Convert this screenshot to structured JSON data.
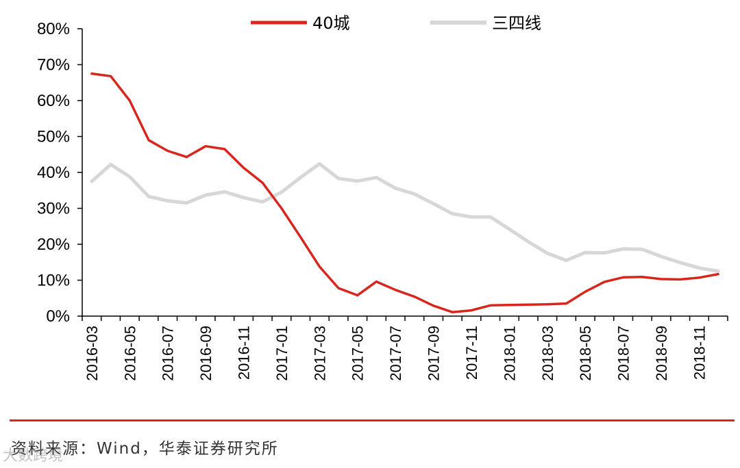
{
  "chart_data": {
    "type": "line",
    "x": [
      "2016-03",
      "2016-04",
      "2016-05",
      "2016-06",
      "2016-07",
      "2016-08",
      "2016-09",
      "2016-10",
      "2016-11",
      "2016-12",
      "2017-01",
      "2017-02",
      "2017-03",
      "2017-04",
      "2017-05",
      "2017-06",
      "2017-07",
      "2017-08",
      "2017-09",
      "2017-10",
      "2017-11",
      "2017-12",
      "2018-01",
      "2018-02",
      "2018-03",
      "2018-04",
      "2018-05",
      "2018-06",
      "2018-07",
      "2018-08",
      "2018-09",
      "2018-10",
      "2018-11",
      "2018-12"
    ],
    "x_tick_labels": [
      "2016-03",
      "2016-05",
      "2016-07",
      "2016-09",
      "2016-11",
      "2017-01",
      "2017-03",
      "2017-05",
      "2017-07",
      "2017-09",
      "2017-11",
      "2018-01",
      "2018-03",
      "2018-05",
      "2018-07",
      "2018-09",
      "2018-11"
    ],
    "series": [
      {
        "name": "40城",
        "color": "#d9261c",
        "values": [
          67.5,
          66.8,
          60,
          49,
          46,
          44.3,
          47.3,
          46.5,
          41.3,
          37.1,
          30,
          22,
          13.8,
          7.8,
          5.8,
          9.6,
          7.3,
          5.4,
          2.9,
          1.1,
          1.6,
          3,
          3.1,
          3.2,
          3.3,
          3.5,
          6.8,
          9.5,
          10.8,
          10.9,
          10.3,
          10.2,
          10.7,
          11.7
        ]
      },
      {
        "name": "三四线",
        "color": "#d7d7d7",
        "values": [
          37.5,
          42.2,
          38.8,
          33.3,
          32.1,
          31.5,
          33.7,
          34.6,
          33,
          31.8,
          34.5,
          38.6,
          42.4,
          38.3,
          37.6,
          38.6,
          35.6,
          34,
          31.3,
          28.5,
          27.6,
          27.6,
          24.2,
          20.7,
          17.5,
          15.5,
          17.7,
          17.6,
          18.7,
          18.6,
          16.6,
          14.9,
          13.4,
          12.5
        ]
      }
    ],
    "y_tick_labels": [
      "0%",
      "10%",
      "20%",
      "30%",
      "40%",
      "50%",
      "60%",
      "70%",
      "80%"
    ],
    "ylim": [
      0,
      80
    ],
    "legend": "top-center",
    "grid": false
  },
  "source_text": "资料来源：Wind，华泰证券研究所",
  "watermark_text": "大数跨境",
  "colors": {
    "rule": "#d9261c",
    "axis": "#000000"
  }
}
